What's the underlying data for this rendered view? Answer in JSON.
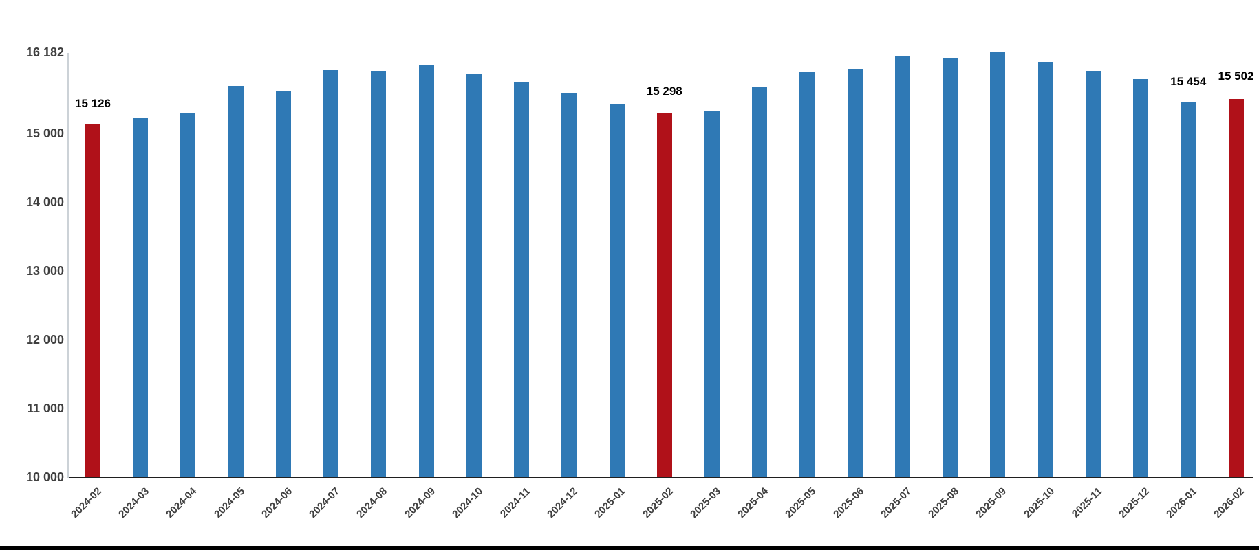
{
  "chart_data": {
    "type": "bar",
    "title": "",
    "xlabel": "",
    "ylabel": "",
    "categories": [
      "2024-02",
      "2024-03",
      "2024-04",
      "2024-05",
      "2024-06",
      "2024-07",
      "2024-08",
      "2024-09",
      "2024-10",
      "2024-11",
      "2024-12",
      "2025-01",
      "2025-02",
      "2025-03",
      "2025-04",
      "2025-05",
      "2025-06",
      "2025-07",
      "2025-08",
      "2025-09",
      "2025-10",
      "2025-11",
      "2025-12",
      "2026-01",
      "2026-02"
    ],
    "values": [
      15126,
      15230,
      15300,
      15690,
      15620,
      15920,
      15910,
      16000,
      15870,
      15750,
      15590,
      15420,
      15298,
      15330,
      15670,
      15890,
      15940,
      16120,
      16090,
      16182,
      16040,
      15910,
      15790,
      15454,
      15502
    ],
    "highlight_indices": [
      0,
      12,
      24
    ],
    "data_labels": [
      {
        "index": 0,
        "text": "15 126",
        "dy": -30
      },
      {
        "index": 12,
        "text": "15 298",
        "dy": -31
      },
      {
        "index": 23,
        "text": "15 454",
        "dy": -30
      },
      {
        "index": 24,
        "text": "15 502",
        "dy": -33
      }
    ],
    "y_ticks": [
      {
        "value": 10000,
        "label": "10 000"
      },
      {
        "value": 11000,
        "label": "11 000"
      },
      {
        "value": 12000,
        "label": "12 000"
      },
      {
        "value": 13000,
        "label": "13 000"
      },
      {
        "value": 14000,
        "label": "14 000"
      },
      {
        "value": 15000,
        "label": "15 000"
      },
      {
        "value": 16182,
        "label": "16 182"
      }
    ],
    "ylim": [
      10000,
      16182
    ],
    "grid": false,
    "legend": "none",
    "colors": {
      "bar": "#2f79b5",
      "highlight": "#b01119",
      "axis_text": "#3f3f3f",
      "data_label_text": "#000000",
      "y_axis_line": "#ccd2d7",
      "x_axis_line": "#1f1f1f",
      "bottom_strip": "#000000",
      "background": "#ffffff"
    }
  }
}
